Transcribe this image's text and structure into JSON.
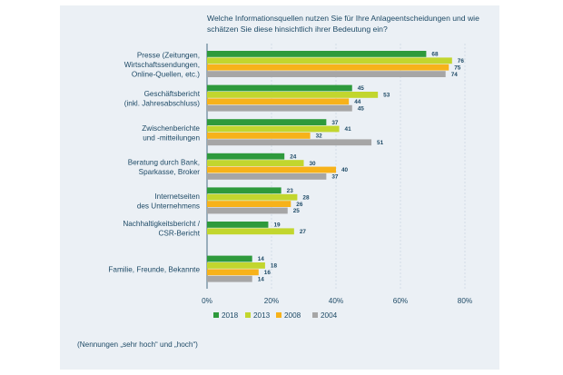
{
  "title": "Welche Informationsquellen nutzen Sie für Ihre Anlageentscheidungen und wie schätzen Sie diese hinsichtlich ihrer Bedeutung ein?",
  "footnote": "(Nennungen „sehr hoch“ und „hoch“)",
  "chart_data": {
    "type": "bar",
    "orientation": "horizontal",
    "categories": [
      [
        "Presse (Zeitungen,",
        "Wirtschaftssendungen,",
        "Online-Quellen, etc.)"
      ],
      [
        "Geschäftsbericht",
        "(inkl. Jahresabschluss)"
      ],
      [
        "Zwischenberichte",
        "und -mitteilungen"
      ],
      [
        "Beratung durch Bank,",
        "Sparkasse, Broker"
      ],
      [
        "Internetseiten",
        "des Unternehmens"
      ],
      [
        "Nachhaltigkeitsbericht /",
        "CSR-Bericht"
      ],
      [
        "Familie, Freunde, Bekannte"
      ]
    ],
    "series": [
      {
        "name": "2018",
        "color": "#2e9a3c",
        "values": [
          68,
          45,
          37,
          24,
          23,
          19,
          14
        ]
      },
      {
        "name": "2013",
        "color": "#c2d62e",
        "values": [
          76,
          53,
          41,
          30,
          28,
          27,
          18
        ]
      },
      {
        "name": "2008",
        "color": "#f7b21a",
        "values": [
          75,
          44,
          32,
          40,
          26,
          null,
          16
        ]
      },
      {
        "name": "2004",
        "color": "#a6a6a6",
        "values": [
          74,
          45,
          51,
          37,
          25,
          null,
          14
        ]
      }
    ],
    "xlim": [
      0,
      80
    ],
    "xticks": [
      "0%",
      "20%",
      "40%",
      "60%",
      "80%"
    ],
    "grid": true,
    "legend_position": "bottom"
  }
}
